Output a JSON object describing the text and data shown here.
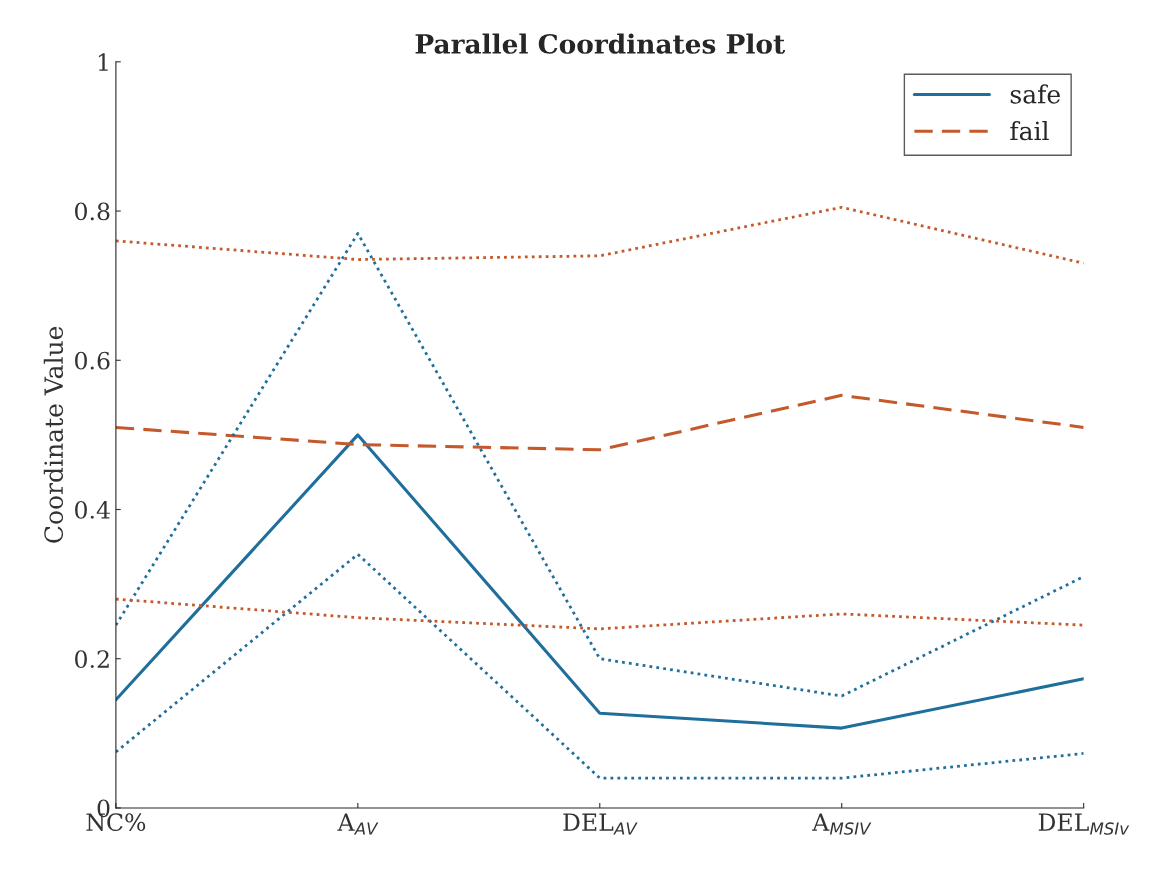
{
  "chart_data": {
    "type": "line",
    "title": "Parallel Coordinates Plot",
    "ylabel": "Coordinate Value",
    "categories": [
      "NC%",
      "A$_{AV}$",
      "DEL$_{AV}$",
      "A$_{MSIV}$",
      "DEL$_{MSIv}$"
    ],
    "series": [
      {
        "name": "safe",
        "color": "#1f6e9c",
        "line_style": "solid",
        "values": [
          0.145,
          0.5,
          0.127,
          0.107,
          0.173
        ]
      },
      {
        "name": "fail",
        "color": "#c4592b",
        "line_style": "dashed",
        "values": [
          0.51,
          0.487,
          0.48,
          0.553,
          0.51
        ]
      },
      {
        "color": "#1f6e9c",
        "line_style": "dotted",
        "values": [
          0.245,
          0.77,
          0.2,
          0.15,
          0.31
        ]
      },
      {
        "color": "#1f6e9c",
        "line_style": "dotted",
        "values": [
          0.075,
          0.34,
          0.04,
          0.04,
          0.073
        ]
      },
      {
        "color": "#c4592b",
        "line_style": "dotted",
        "values": [
          0.76,
          0.735,
          0.74,
          0.805,
          0.73
        ]
      },
      {
        "color": "#c4592b",
        "line_style": "dotted",
        "values": [
          0.28,
          0.255,
          0.24,
          0.26,
          0.245
        ]
      }
    ],
    "ylim": [
      0,
      1
    ],
    "yticks": [
      0,
      0.2,
      0.4,
      0.6,
      0.8,
      1
    ],
    "grid": false,
    "legend": "top right"
  }
}
